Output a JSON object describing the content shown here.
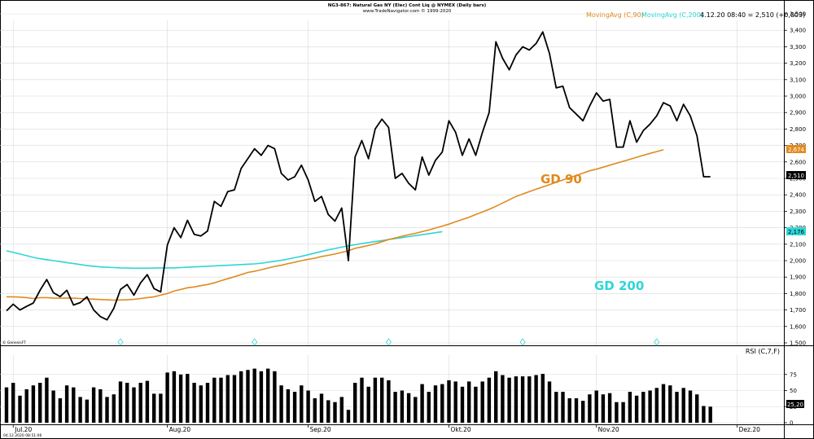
{
  "header": {
    "title": "NG3-867: Natural Gas NY (Elec) Cont Liq @ NYMEX (Daily bars)",
    "subtitle": "www.TradeNavigator.com © 1999-2020"
  },
  "legend": {
    "ma90": "MovingAvg (C,90)",
    "ma200": "MovingAvg (C,200)",
    "quote": "4.12.20 08:40 = 2,510 (+0,003)"
  },
  "labels": {
    "gd90": "GD 90",
    "gd200": "GD 200",
    "genesis": "© GenesisFT",
    "rsi_title": "RSI (C,7,F)",
    "timestamp": "04.12.2020 08:51:06"
  },
  "colors": {
    "price": "#000000",
    "ma90": "#E08A1E",
    "ma200": "#2ED6D6",
    "grid": "#D9D9D9",
    "rsi_bar": "#000000"
  },
  "chart_data": {
    "type": "line",
    "price_axis": {
      "ylim": [
        1500,
        3500
      ],
      "ticks": [
        "1,500",
        "1,600",
        "1,700",
        "1,800",
        "1,900",
        "2,000",
        "2,100",
        "2,200",
        "2,300",
        "2,400",
        "2,500",
        "2,600",
        "2,700",
        "2,800",
        "2,900",
        "3,000",
        "3,100",
        "3,200",
        "3,300",
        "3,400",
        "3,500"
      ]
    },
    "x_ticks": [
      {
        "label": "Jul.20",
        "index": 1
      },
      {
        "label": "Aug.20",
        "index": 24
      },
      {
        "label": "Sep.20",
        "index": 45
      },
      {
        "label": "Okt.20",
        "index": 66
      },
      {
        "label": "Nov.20",
        "index": 88
      },
      {
        "label": "Dez.20",
        "index": 109
      }
    ],
    "series": [
      {
        "key": "price",
        "values": [
          1.695,
          1.735,
          1.7,
          1.722,
          1.742,
          1.82,
          1.885,
          1.805,
          1.781,
          1.82,
          1.73,
          1.745,
          1.78,
          1.7,
          1.66,
          1.64,
          1.71,
          1.825,
          1.855,
          1.79,
          1.865,
          1.915,
          1.83,
          1.81,
          2.095,
          2.2,
          2.14,
          2.245,
          2.16,
          2.15,
          2.18,
          2.36,
          2.33,
          2.42,
          2.43,
          2.56,
          2.62,
          2.68,
          2.64,
          2.7,
          2.68,
          2.53,
          2.49,
          2.51,
          2.58,
          2.49,
          2.36,
          2.39,
          2.28,
          2.24,
          2.32,
          2.0,
          2.63,
          2.73,
          2.62,
          2.8,
          2.86,
          2.81,
          2.5,
          2.53,
          2.47,
          2.43,
          2.63,
          2.52,
          2.61,
          2.66,
          2.85,
          2.78,
          2.64,
          2.74,
          2.64,
          2.78,
          2.9,
          3.33,
          3.23,
          3.16,
          3.25,
          3.3,
          3.28,
          3.32,
          3.39,
          3.26,
          3.05,
          3.06,
          2.93,
          2.89,
          2.85,
          2.94,
          3.02,
          2.97,
          2.98,
          2.69,
          2.69,
          2.85,
          2.72,
          2.79,
          2.83,
          2.88,
          2.96,
          2.94,
          2.85,
          2.95,
          2.88,
          2.76,
          2.51,
          2.51
        ]
      },
      {
        "key": "ma90",
        "values": [
          1.78,
          1.78,
          1.778,
          1.775,
          1.77,
          1.775,
          1.775,
          1.773,
          1.772,
          1.772,
          1.772,
          1.77,
          1.768,
          1.766,
          1.764,
          1.762,
          1.76,
          1.761,
          1.762,
          1.765,
          1.77,
          1.775,
          1.78,
          1.79,
          1.8,
          1.815,
          1.825,
          1.835,
          1.84,
          1.848,
          1.855,
          1.865,
          1.878,
          1.89,
          1.902,
          1.915,
          1.928,
          1.935,
          1.945,
          1.955,
          1.965,
          1.972,
          1.982,
          1.99,
          2.0,
          2.008,
          2.015,
          2.025,
          2.032,
          2.04,
          2.05,
          2.06,
          2.075,
          2.083,
          2.092,
          2.102,
          2.115,
          2.128,
          2.138,
          2.148,
          2.158,
          2.166,
          2.176,
          2.186,
          2.198,
          2.21,
          2.222,
          2.236,
          2.25,
          2.264,
          2.28,
          2.296,
          2.312,
          2.33,
          2.35,
          2.37,
          2.39,
          2.405,
          2.42,
          2.434,
          2.448,
          2.462,
          2.476,
          2.49,
          2.504,
          2.518,
          2.532,
          2.546,
          2.556,
          2.568,
          2.58,
          2.592,
          2.604,
          2.616,
          2.628,
          2.64,
          2.652,
          2.663,
          2.674
        ]
      },
      {
        "key": "ma200",
        "values": [
          2.06,
          2.05,
          2.04,
          2.03,
          2.02,
          2.012,
          2.006,
          2.0,
          1.994,
          1.988,
          1.982,
          1.976,
          1.97,
          1.966,
          1.962,
          1.96,
          1.958,
          1.956,
          1.955,
          1.954,
          1.954,
          1.954,
          1.955,
          1.956,
          1.956,
          1.956,
          1.958,
          1.96,
          1.962,
          1.964,
          1.966,
          1.968,
          1.97,
          1.972,
          1.974,
          1.976,
          1.978,
          1.98,
          1.984,
          1.99,
          1.996,
          2.002,
          2.01,
          2.018,
          2.026,
          2.036,
          2.046,
          2.056,
          2.066,
          2.074,
          2.082,
          2.09,
          2.097,
          2.104,
          2.11,
          2.116,
          2.122,
          2.128,
          2.134,
          2.14,
          2.146,
          2.152,
          2.158,
          2.164,
          2.17,
          2.176
        ]
      }
    ],
    "rsi": {
      "title": "RSI (C,7,F)",
      "ylim": [
        0,
        100
      ],
      "ticks": [
        "0",
        "25",
        "50",
        "75"
      ],
      "current": "25,20",
      "values": [
        55,
        62,
        42,
        52,
        58,
        62,
        70,
        50,
        38,
        58,
        55,
        40,
        36,
        55,
        52,
        40,
        44,
        64,
        62,
        55,
        62,
        65,
        45,
        45,
        78,
        80,
        75,
        76,
        62,
        58,
        62,
        70,
        70,
        74,
        74,
        80,
        82,
        84,
        80,
        84,
        80,
        58,
        52,
        48,
        58,
        50,
        38,
        45,
        35,
        32,
        40,
        20,
        62,
        70,
        56,
        70,
        70,
        66,
        48,
        50,
        46,
        40,
        60,
        48,
        58,
        60,
        66,
        64,
        56,
        64,
        56,
        64,
        70,
        80,
        74,
        70,
        72,
        72,
        72,
        74,
        76,
        64,
        48,
        48,
        38,
        38,
        34,
        44,
        50,
        44,
        46,
        32,
        32,
        48,
        42,
        48,
        50,
        54,
        60,
        58,
        48,
        54,
        50,
        44,
        26,
        25
      ]
    }
  }
}
